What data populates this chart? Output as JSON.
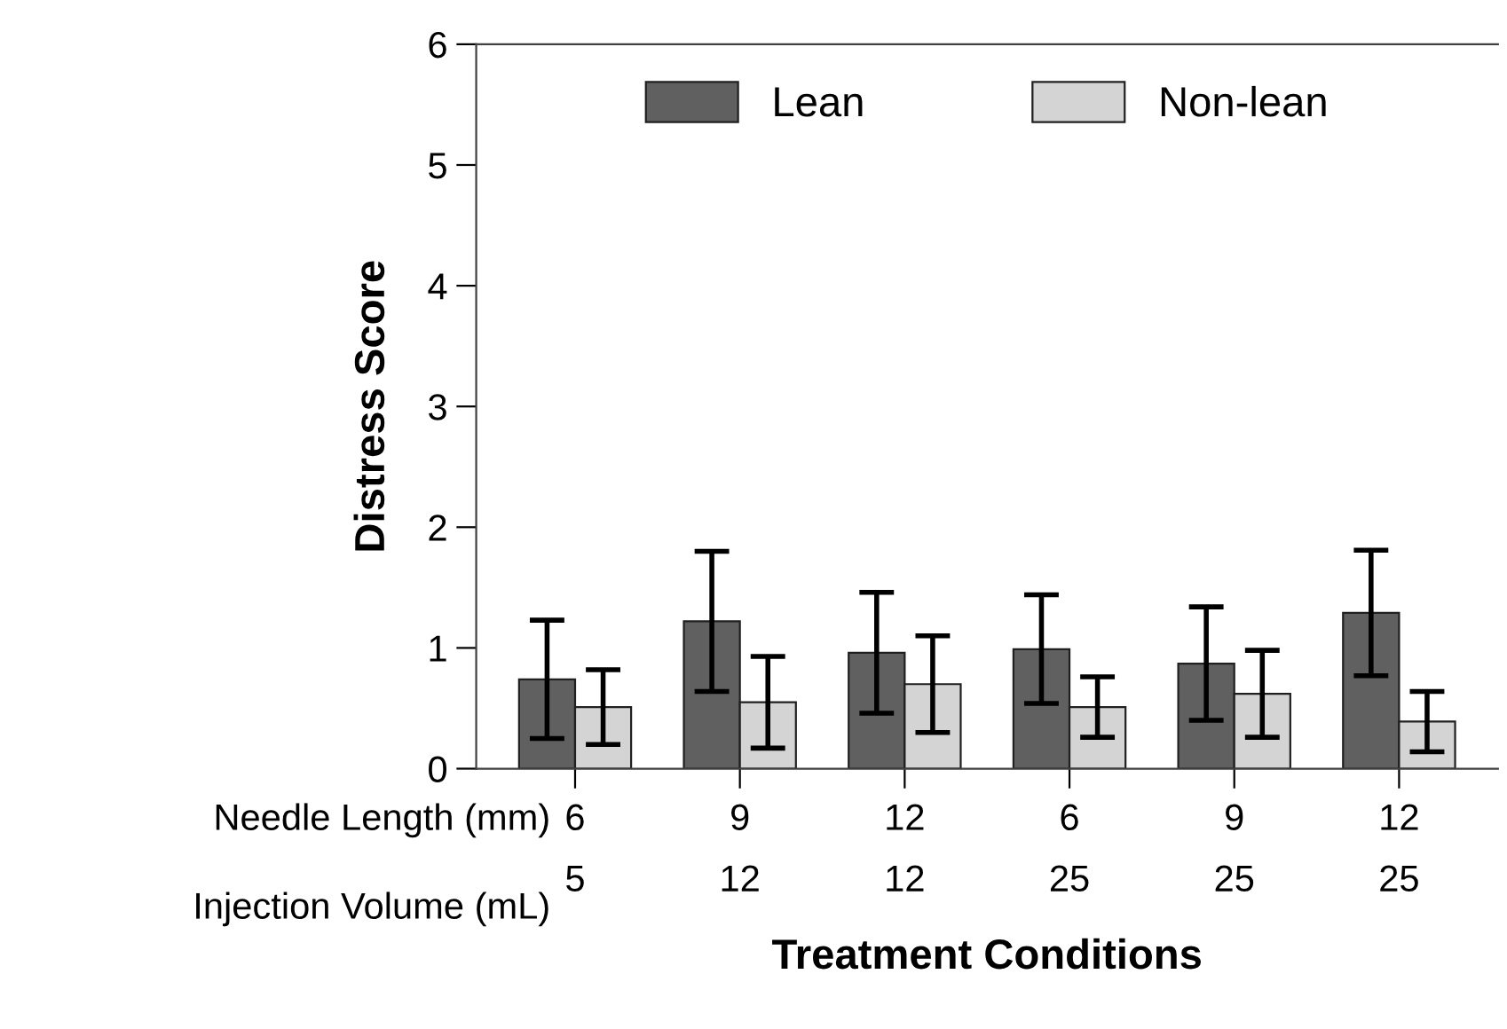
{
  "chart_data": {
    "type": "bar",
    "categories": [
      "6\n5",
      "9\n12",
      "12\n12",
      "6\n25",
      "9\n25",
      "12\n25"
    ],
    "series": [
      {
        "name": "Lean",
        "color": "#606060",
        "values": [
          0.74,
          1.22,
          0.96,
          0.99,
          0.87,
          1.29
        ],
        "errors": [
          0.49,
          0.58,
          0.5,
          0.45,
          0.47,
          0.52
        ]
      },
      {
        "name": "Non-lean",
        "color": "#d4d4d4",
        "values": [
          0.51,
          0.55,
          0.7,
          0.51,
          0.62,
          0.39
        ],
        "errors": [
          0.31,
          0.38,
          0.4,
          0.25,
          0.36,
          0.25
        ]
      }
    ],
    "xlabel": "Treatment Conditions",
    "ylabel": "Distress Score",
    "annotations": [
      "Needle Length (mm)",
      "Injection Volume (mL)"
    ],
    "ylim": [
      0,
      6
    ],
    "yticks": [
      0,
      1,
      2,
      3,
      4,
      5,
      6
    ],
    "legend": "top",
    "grid": false
  }
}
